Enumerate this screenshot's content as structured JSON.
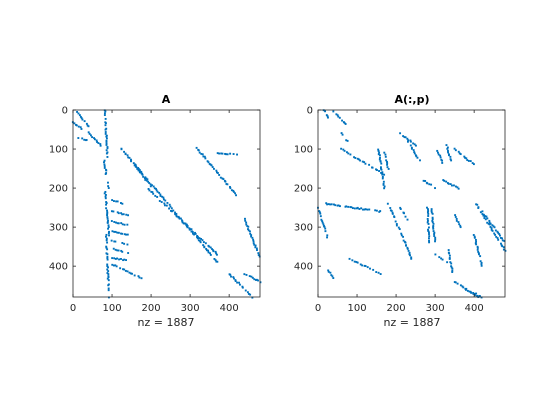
{
  "figure": {
    "background": "#ffffff",
    "marker_color": "#0072bd"
  },
  "chart_data": [
    {
      "type": "scatter",
      "subtype": "sparsity-pattern",
      "title": "A",
      "xlabel": "nz = 1887",
      "ylabel": "",
      "xlim": [
        0,
        479
      ],
      "ylim": [
        479,
        0
      ],
      "xticks": [
        0,
        100,
        200,
        300,
        400
      ],
      "yticks": [
        0,
        100,
        200,
        300,
        400
      ],
      "nz": 1887,
      "grid": false,
      "segments": [
        {
          "from": [
            8,
            2
          ],
          "to": [
            40,
            42
          ]
        },
        {
          "from": [
            0,
            32
          ],
          "to": [
            22,
            48
          ]
        },
        {
          "from": [
            40,
            58
          ],
          "to": [
            75,
            95
          ]
        },
        {
          "from": [
            10,
            70
          ],
          "to": [
            45,
            80
          ]
        },
        {
          "from": [
            82,
            0
          ],
          "to": [
            88,
            120
          ]
        },
        {
          "from": [
            80,
            130
          ],
          "to": [
            90,
            200
          ]
        },
        {
          "from": [
            82,
            210
          ],
          "to": [
            92,
            320
          ]
        },
        {
          "from": [
            85,
            320
          ],
          "to": [
            92,
            479
          ]
        },
        {
          "from": [
            100,
            230
          ],
          "to": [
            140,
            245
          ]
        },
        {
          "from": [
            100,
            260
          ],
          "to": [
            140,
            270
          ]
        },
        {
          "from": [
            100,
            285
          ],
          "to": [
            140,
            295
          ]
        },
        {
          "from": [
            100,
            310
          ],
          "to": [
            140,
            320
          ]
        },
        {
          "from": [
            100,
            335
          ],
          "to": [
            140,
            345
          ]
        },
        {
          "from": [
            100,
            355
          ],
          "to": [
            140,
            365
          ]
        },
        {
          "from": [
            100,
            380
          ],
          "to": [
            140,
            385
          ]
        },
        {
          "from": [
            100,
            395
          ],
          "to": [
            175,
            430
          ]
        },
        {
          "from": [
            120,
            95
          ],
          "to": [
            370,
            390
          ]
        },
        {
          "from": [
            140,
            120
          ],
          "to": [
            200,
            195
          ]
        },
        {
          "from": [
            190,
            200
          ],
          "to": [
            370,
            370
          ]
        },
        {
          "from": [
            315,
            95
          ],
          "to": [
            420,
            220
          ]
        },
        {
          "from": [
            370,
            110
          ],
          "to": [
            420,
            115
          ]
        },
        {
          "from": [
            440,
            280
          ],
          "to": [
            479,
            380
          ]
        },
        {
          "from": [
            400,
            420
          ],
          "to": [
            460,
            479
          ]
        },
        {
          "from": [
            440,
            420
          ],
          "to": [
            479,
            440
          ]
        }
      ]
    },
    {
      "type": "scatter",
      "subtype": "sparsity-pattern",
      "title": "A(:,p)",
      "xlabel": "nz = 1887",
      "ylabel": "",
      "xlim": [
        0,
        479
      ],
      "ylim": [
        479,
        0
      ],
      "xticks": [
        0,
        100,
        200,
        300,
        400
      ],
      "yticks": [
        0,
        100,
        200,
        300,
        400
      ],
      "nz": 1887,
      "grid": false,
      "segments": [
        {
          "from": [
            15,
            0
          ],
          "to": [
            25,
            20
          ]
        },
        {
          "from": [
            40,
            5
          ],
          "to": [
            75,
            40
          ]
        },
        {
          "from": [
            60,
            60
          ],
          "to": [
            75,
            80
          ]
        },
        {
          "from": [
            60,
            100
          ],
          "to": [
            170,
            165
          ]
        },
        {
          "from": [
            155,
            100
          ],
          "to": [
            170,
            200
          ]
        },
        {
          "from": [
            170,
            110
          ],
          "to": [
            180,
            150
          ]
        },
        {
          "from": [
            210,
            60
          ],
          "to": [
            250,
            90
          ]
        },
        {
          "from": [
            230,
            80
          ],
          "to": [
            260,
            130
          ]
        },
        {
          "from": [
            305,
            100
          ],
          "to": [
            320,
            140
          ]
        },
        {
          "from": [
            330,
            90
          ],
          "to": [
            340,
            130
          ]
        },
        {
          "from": [
            350,
            100
          ],
          "to": [
            400,
            140
          ]
        },
        {
          "from": [
            270,
            180
          ],
          "to": [
            300,
            200
          ]
        },
        {
          "from": [
            320,
            180
          ],
          "to": [
            360,
            200
          ]
        },
        {
          "from": [
            0,
            250
          ],
          "to": [
            25,
            330
          ]
        },
        {
          "from": [
            20,
            240
          ],
          "to": [
            160,
            260
          ]
        },
        {
          "from": [
            180,
            240
          ],
          "to": [
            240,
            380
          ]
        },
        {
          "from": [
            210,
            250
          ],
          "to": [
            230,
            280
          ]
        },
        {
          "from": [
            280,
            250
          ],
          "to": [
            285,
            340
          ]
        },
        {
          "from": [
            290,
            245
          ],
          "to": [
            300,
            340
          ]
        },
        {
          "from": [
            300,
            370
          ],
          "to": [
            330,
            390
          ]
        },
        {
          "from": [
            335,
            360
          ],
          "to": [
            345,
            420
          ]
        },
        {
          "from": [
            350,
            270
          ],
          "to": [
            365,
            300
          ]
        },
        {
          "from": [
            405,
            240
          ],
          "to": [
            479,
            360
          ]
        },
        {
          "from": [
            420,
            260
          ],
          "to": [
            479,
            340
          ]
        },
        {
          "from": [
            400,
            320
          ],
          "to": [
            420,
            400
          ]
        },
        {
          "from": [
            80,
            380
          ],
          "to": [
            160,
            420
          ]
        },
        {
          "from": [
            25,
            410
          ],
          "to": [
            40,
            430
          ]
        },
        {
          "from": [
            350,
            440
          ],
          "to": [
            410,
            479
          ]
        },
        {
          "from": [
            380,
            460
          ],
          "to": [
            420,
            479
          ]
        }
      ]
    }
  ]
}
